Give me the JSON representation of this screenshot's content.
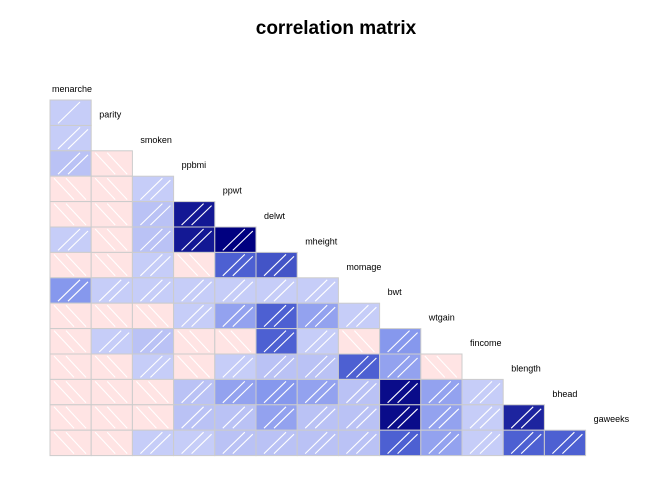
{
  "chart_data": {
    "type": "heatmap",
    "title": "correlation matrix",
    "layout": "lower-triangle",
    "labels": [
      "menarche",
      "parity",
      "smoken",
      "ppbmi",
      "ppwt",
      "delwt",
      "mheight",
      "momage",
      "bwt",
      "wtgain",
      "fincome",
      "blength",
      "bhead",
      "gaweeks"
    ],
    "lower_values": [
      [
        0.1
      ],
      [
        0.15,
        -0.1
      ],
      [
        -0.1,
        -0.1,
        0.1
      ],
      [
        -0.1,
        -0.1,
        0.15,
        0.9
      ],
      [
        0.1,
        -0.1,
        0.15,
        0.9,
        1.0
      ],
      [
        -0.1,
        -0.1,
        0.1,
        -0.1,
        0.6,
        0.65
      ],
      [
        0.35,
        0.1,
        0.1,
        0.1,
        0.1,
        0.1,
        0.1
      ],
      [
        -0.1,
        -0.1,
        -0.1,
        0.1,
        0.3,
        0.6,
        0.3,
        0.1
      ],
      [
        -0.1,
        0.1,
        0.15,
        -0.1,
        -0.1,
        0.6,
        0.1,
        -0.1,
        0.35
      ],
      [
        -0.1,
        -0.1,
        0.1,
        -0.1,
        0.1,
        0.15,
        0.15,
        0.6,
        0.3,
        -0.1
      ],
      [
        -0.1,
        -0.1,
        -0.1,
        0.15,
        0.3,
        0.35,
        0.3,
        0.15,
        0.95,
        0.3,
        0.1
      ],
      [
        -0.1,
        -0.1,
        -0.1,
        0.15,
        0.15,
        0.3,
        0.15,
        0.15,
        0.95,
        0.3,
        0.1,
        0.85
      ],
      [
        -0.1,
        -0.1,
        0.1,
        0.1,
        0.15,
        0.15,
        0.15,
        0.15,
        0.6,
        0.3,
        0.1,
        0.6,
        0.6
      ]
    ],
    "colors": {
      "positive_max": "#000080",
      "negative": "#ffe4e4",
      "grid": "#cccccc"
    }
  }
}
